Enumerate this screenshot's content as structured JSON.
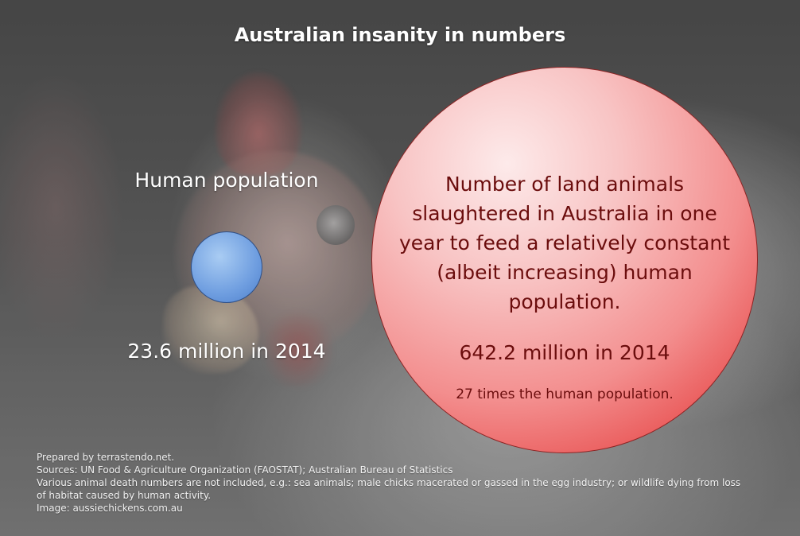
{
  "title": "Australian insanity in numbers",
  "human": {
    "label": "Human population",
    "value": "23.6 million in 2014",
    "circle_color": "#6f9ee0"
  },
  "animals": {
    "description": "Number of land animals slaughtered in Australia in one year to feed a relatively constant (albeit increasing) human population.",
    "value": "642.2 million in 2014",
    "ratio": "27 times the human population.",
    "circle_color": "#e64646",
    "text_color": "#6b0d0d"
  },
  "footer": {
    "prepared_by": "Prepared by terrastendo.net.",
    "sources": "Sources: UN Food & Agriculture Organization (FAOSTAT); Australian Bureau of Statistics",
    "note": "Various animal death numbers are not included, e.g.: sea animals; male chicks macerated or gassed in the egg industry; or wildlife dying from loss of habitat caused by human activity.",
    "image_credit": "Image: aussiechickens.com.au"
  }
}
